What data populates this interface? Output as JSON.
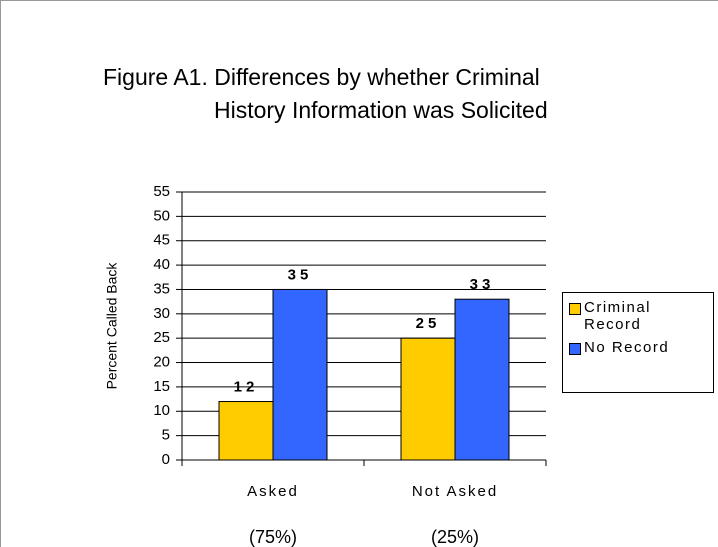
{
  "chart_data": {
    "type": "bar",
    "title": [
      "Figure A1.  Differences by whether Criminal",
      "History Information was Solicited"
    ],
    "y_label": "Percent Called Back",
    "categories": [
      "Asked",
      "Not Asked"
    ],
    "category_notes": [
      "(75%)",
      "(25%)"
    ],
    "series": [
      {
        "name": "Criminal Record",
        "color": "#ffcc00",
        "values": [
          12,
          25
        ]
      },
      {
        "name": "No Record",
        "color": "#3366ff",
        "values": [
          35,
          33
        ]
      }
    ],
    "ylim": [
      0,
      55
    ],
    "yticks": [
      0,
      5,
      10,
      15,
      20,
      25,
      30,
      35,
      40,
      45,
      50,
      55
    ],
    "grid": true,
    "legend": "right"
  }
}
